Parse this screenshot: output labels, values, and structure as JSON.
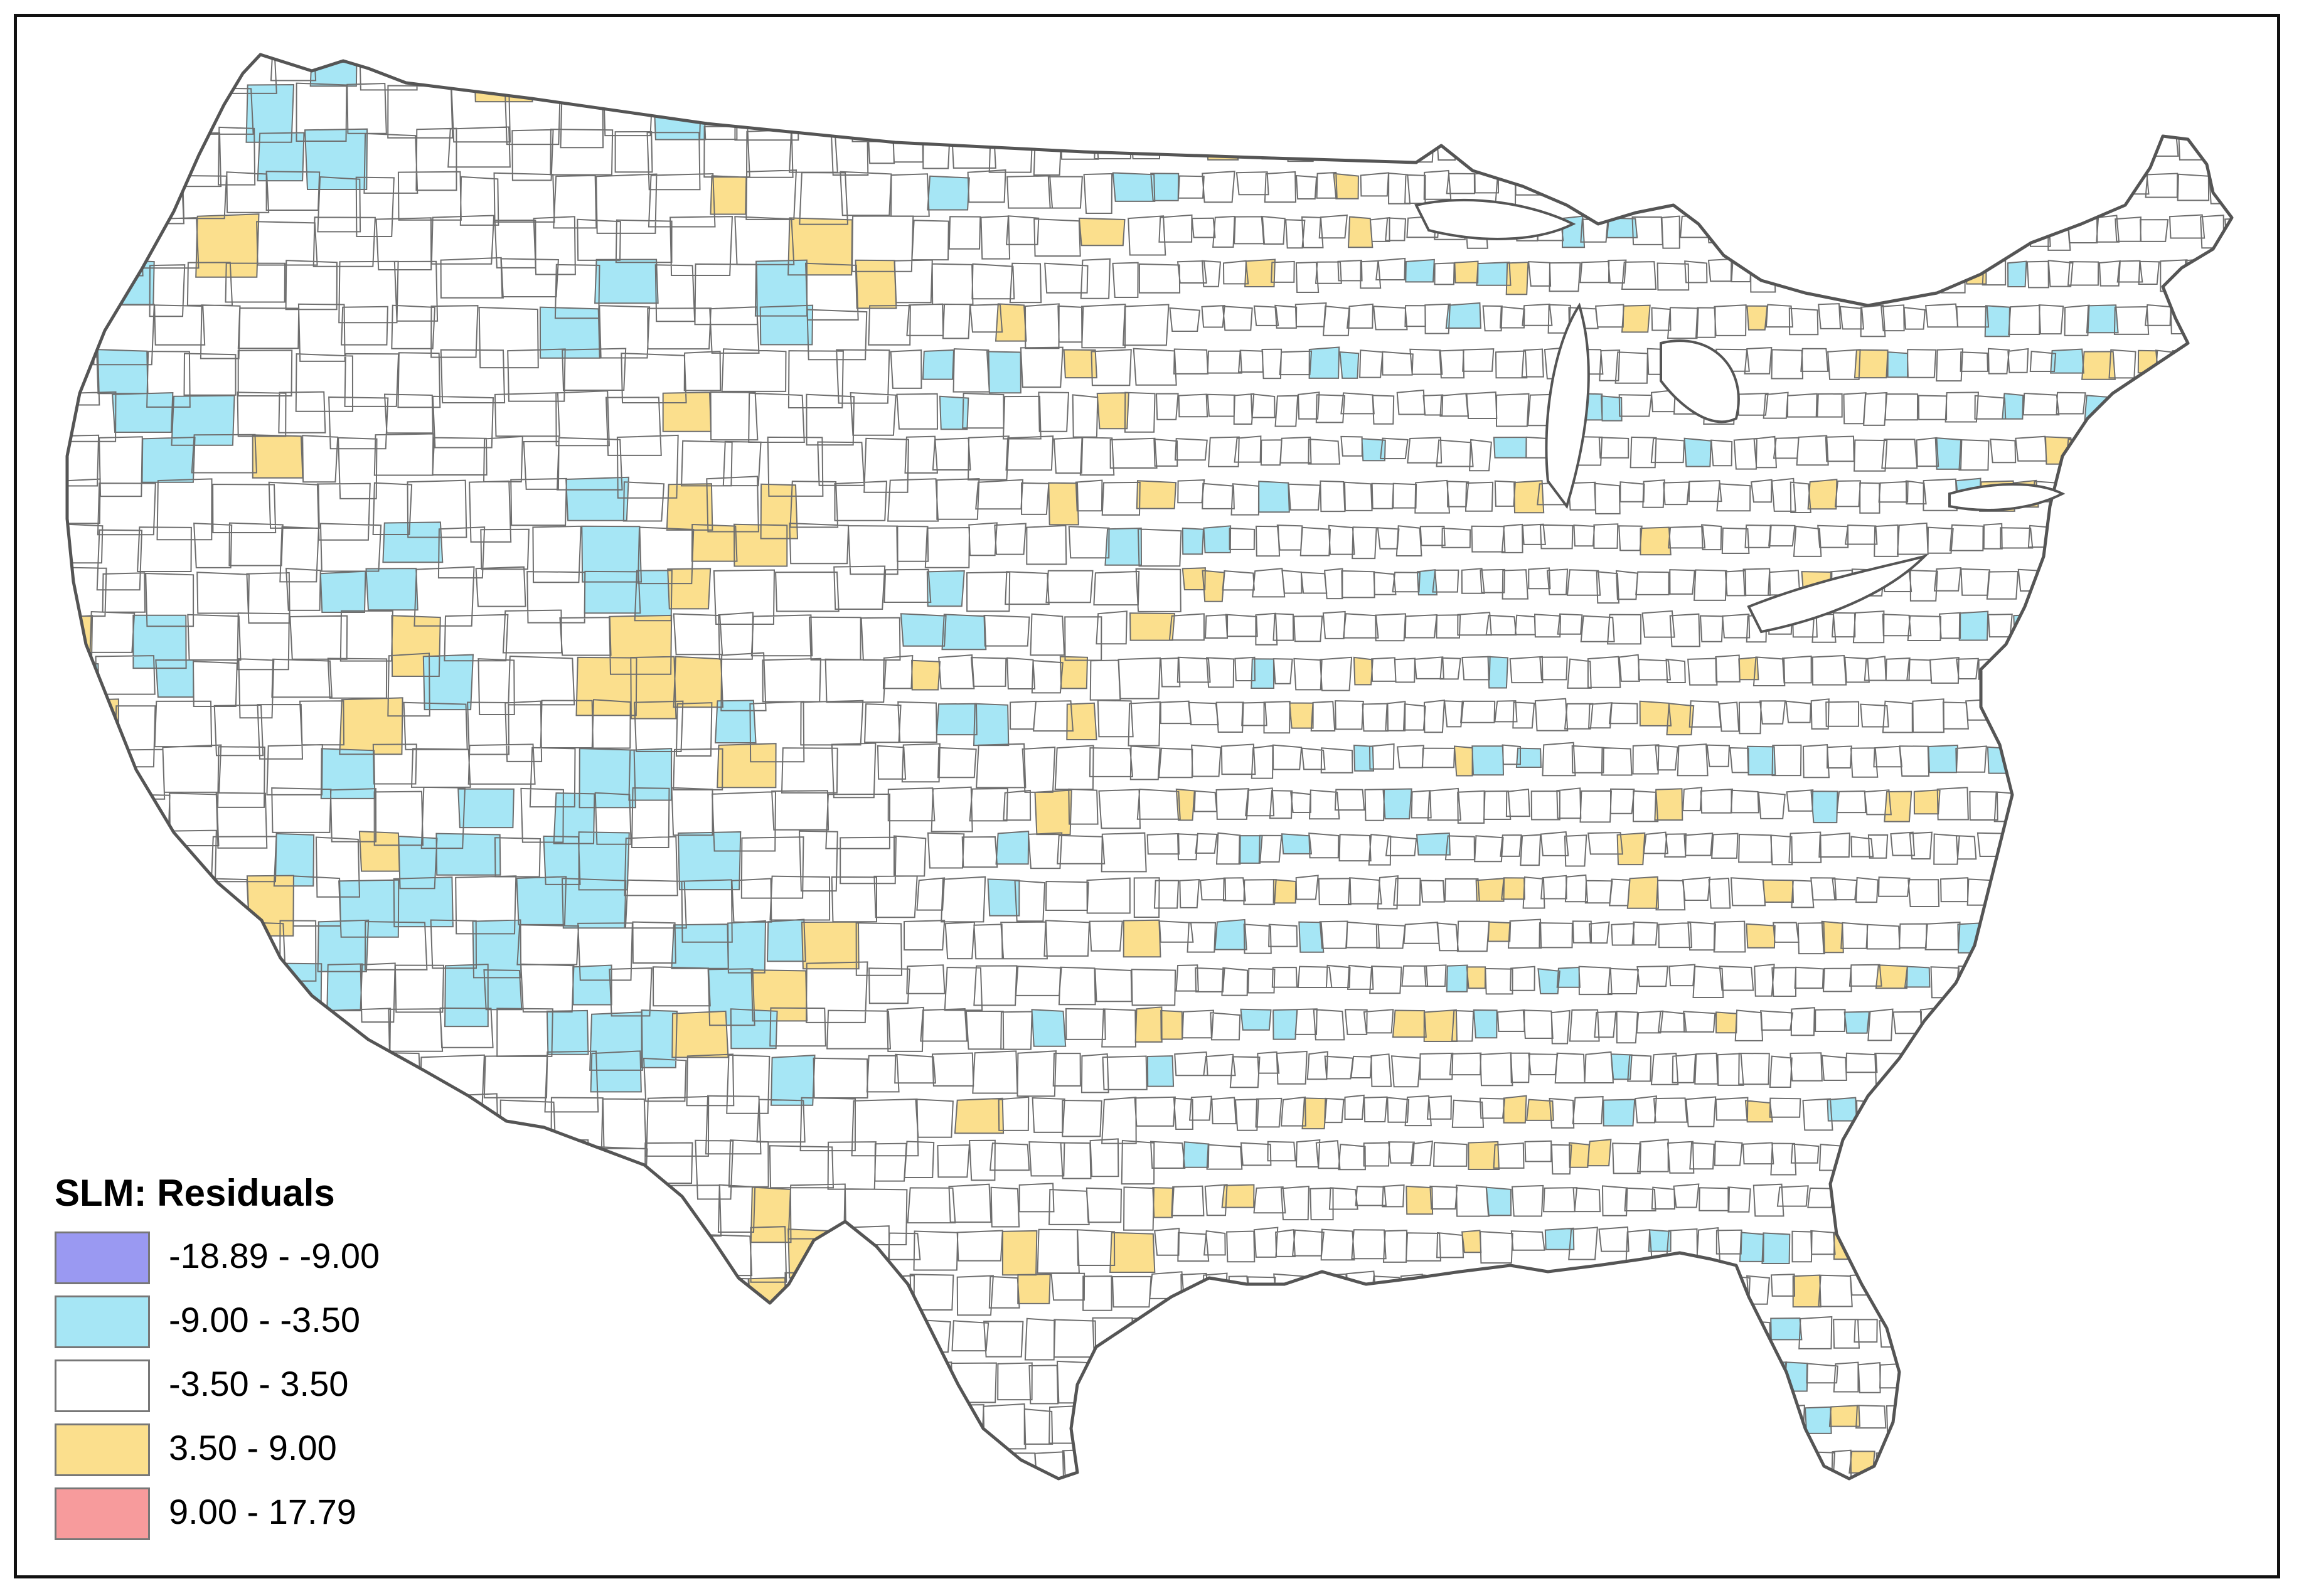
{
  "map": {
    "title": "",
    "region": "contiguous-united-states",
    "unit": "county",
    "boundary_color": "#6e6e6e",
    "outline_color": "#555555"
  },
  "legend": {
    "title": "SLM: Residuals",
    "classes": [
      {
        "label": "-18.89 - -9.00",
        "color": "#9a99f2",
        "range": [
          -18.89,
          -9.0
        ]
      },
      {
        "label": "-9.00 - -3.50",
        "color": "#a6e6f5",
        "range": [
          -9.0,
          -3.5
        ]
      },
      {
        "label": "-3.50 - 3.50",
        "color": "#ffffff",
        "range": [
          -3.5,
          3.5
        ]
      },
      {
        "label": "3.50 - 9.00",
        "color": "#fbdf8d",
        "range": [
          3.5,
          9.0
        ]
      },
      {
        "label": "9.00 - 17.79",
        "color": "#f79b9c",
        "range": [
          9.0,
          17.79
        ]
      }
    ]
  },
  "chart_data": {
    "type": "choropleth",
    "title": "SLM: Residuals",
    "classes": [
      {
        "label": "-18.89 - -9.00",
        "color": "#9a99f2"
      },
      {
        "label": "-9.00 - -3.50",
        "color": "#a6e6f5"
      },
      {
        "label": "-3.50 - 3.50",
        "color": "#ffffff"
      },
      {
        "label": "3.50 - 9.00",
        "color": "#fbdf8d"
      },
      {
        "label": "9.00 - 17.79",
        "color": "#f79b9c"
      }
    ]
  }
}
